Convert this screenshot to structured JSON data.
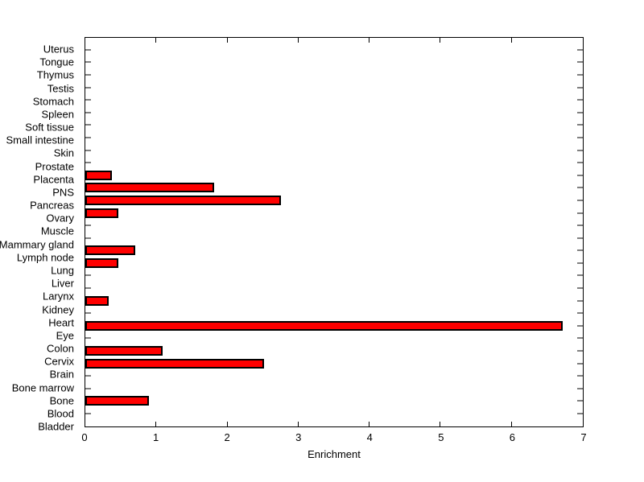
{
  "figure": {
    "background": "#ffffff"
  },
  "chart_data": {
    "type": "bar",
    "orientation": "horizontal",
    "title": "",
    "xlabel": "Enrichment",
    "ylabel": "",
    "xlim": [
      0,
      7
    ],
    "xticks": [
      0,
      1,
      2,
      3,
      4,
      5,
      6,
      7
    ],
    "grid": false,
    "legend": null,
    "bar_color": "#ff0000",
    "bar_border_color": "#000000",
    "axis_color": "#000000",
    "categories_top_to_bottom": [
      "Uterus",
      "Tongue",
      "Thymus",
      "Testis",
      "Stomach",
      "Spleen",
      "Soft tissue",
      "Small intestine",
      "Skin",
      "Prostate",
      "Placenta",
      "PNS",
      "Pancreas",
      "Ovary",
      "Muscle",
      "Mammary gland",
      "Lymph node",
      "Lung",
      "Liver",
      "Larynx",
      "Kidney",
      "Heart",
      "Eye",
      "Colon",
      "Cervix",
      "Brain",
      "Bone marrow",
      "Bone",
      "Blood",
      "Bladder"
    ],
    "values": [
      0,
      0,
      0,
      0,
      0,
      0,
      0,
      0,
      0,
      0,
      0.37,
      1.81,
      2.75,
      0.47,
      0,
      0,
      0.7,
      0.46,
      0,
      0,
      0.33,
      0,
      6.72,
      0,
      1.09,
      2.51,
      0,
      0,
      0.9,
      0
    ]
  }
}
